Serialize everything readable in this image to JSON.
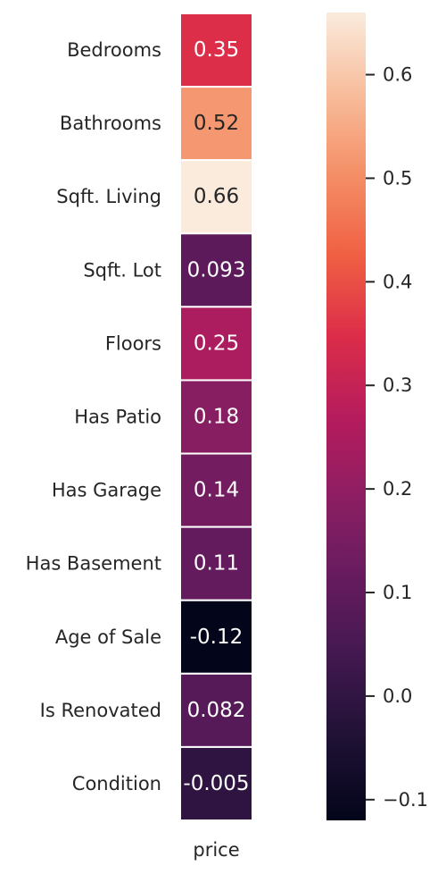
{
  "chart_data": {
    "type": "heatmap",
    "x_categories": [
      "price"
    ],
    "rows": [
      "Bedrooms",
      "Bathrooms",
      "Sqft. Living",
      "Sqft. Lot",
      "Floors",
      "Has Patio",
      "Has Garage",
      "Has Basement",
      "Age of Sale",
      "Is Renovated",
      "Condition"
    ],
    "values": [
      0.35,
      0.52,
      0.66,
      0.093,
      0.25,
      0.18,
      0.14,
      0.11,
      -0.12,
      0.082,
      -0.005
    ],
    "cell_labels": [
      "0.35",
      "0.52",
      "0.66",
      "0.093",
      "0.25",
      "0.18",
      "0.14",
      "0.11",
      "-0.12",
      "0.082",
      "-0.005"
    ],
    "colorbar": {
      "min": -0.12,
      "max": 0.66,
      "ticks": [
        -0.1,
        0.0,
        0.1,
        0.2,
        0.3,
        0.4,
        0.5,
        0.6
      ],
      "tick_labels": [
        "−0.1",
        "0.0",
        "0.1",
        "0.2",
        "0.3",
        "0.4",
        "0.5",
        "0.6"
      ],
      "colormap": "rocket"
    }
  }
}
